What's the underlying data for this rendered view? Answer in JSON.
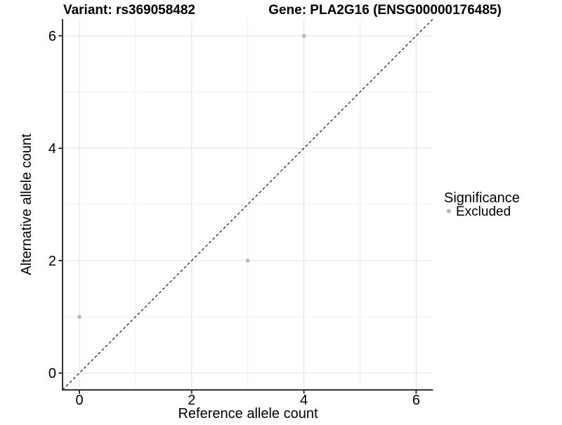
{
  "chart_data": {
    "type": "scatter",
    "titles": {
      "left": "Variant: rs369058482",
      "right": "Gene: PLA2G16 (ENSG00000176485)"
    },
    "xlabel": "Reference allele count",
    "ylabel": "Alternative allele count",
    "x_ticks": [
      0,
      2,
      4,
      6
    ],
    "y_ticks": [
      0,
      2,
      4,
      6
    ],
    "x_minor_ticks": [
      1,
      3,
      5
    ],
    "y_minor_ticks": [
      1,
      3,
      5
    ],
    "xlim": [
      -0.3,
      6.3
    ],
    "ylim": [
      -0.3,
      6.3
    ],
    "grid": "major+minor",
    "identity_line": {
      "style": "dashed",
      "x1": -0.3,
      "y1": -0.3,
      "x2": 6.3,
      "y2": 6.3,
      "color": "#000000"
    },
    "series": [
      {
        "name": "Excluded",
        "color": "#b5b5b5",
        "points": [
          [
            0,
            1
          ],
          [
            3,
            2
          ],
          [
            4,
            6
          ]
        ]
      }
    ],
    "legend": {
      "title": "Significance",
      "position": "right",
      "items": [
        {
          "label": "Excluded",
          "color": "#b5b5b5"
        }
      ]
    },
    "colors": {
      "background": "#ffffff",
      "grid_major": "#e3e3e3",
      "grid_minor": "#efefef",
      "axis_line": "#333333",
      "tick_mark": "#333333",
      "text": "#000000"
    }
  }
}
